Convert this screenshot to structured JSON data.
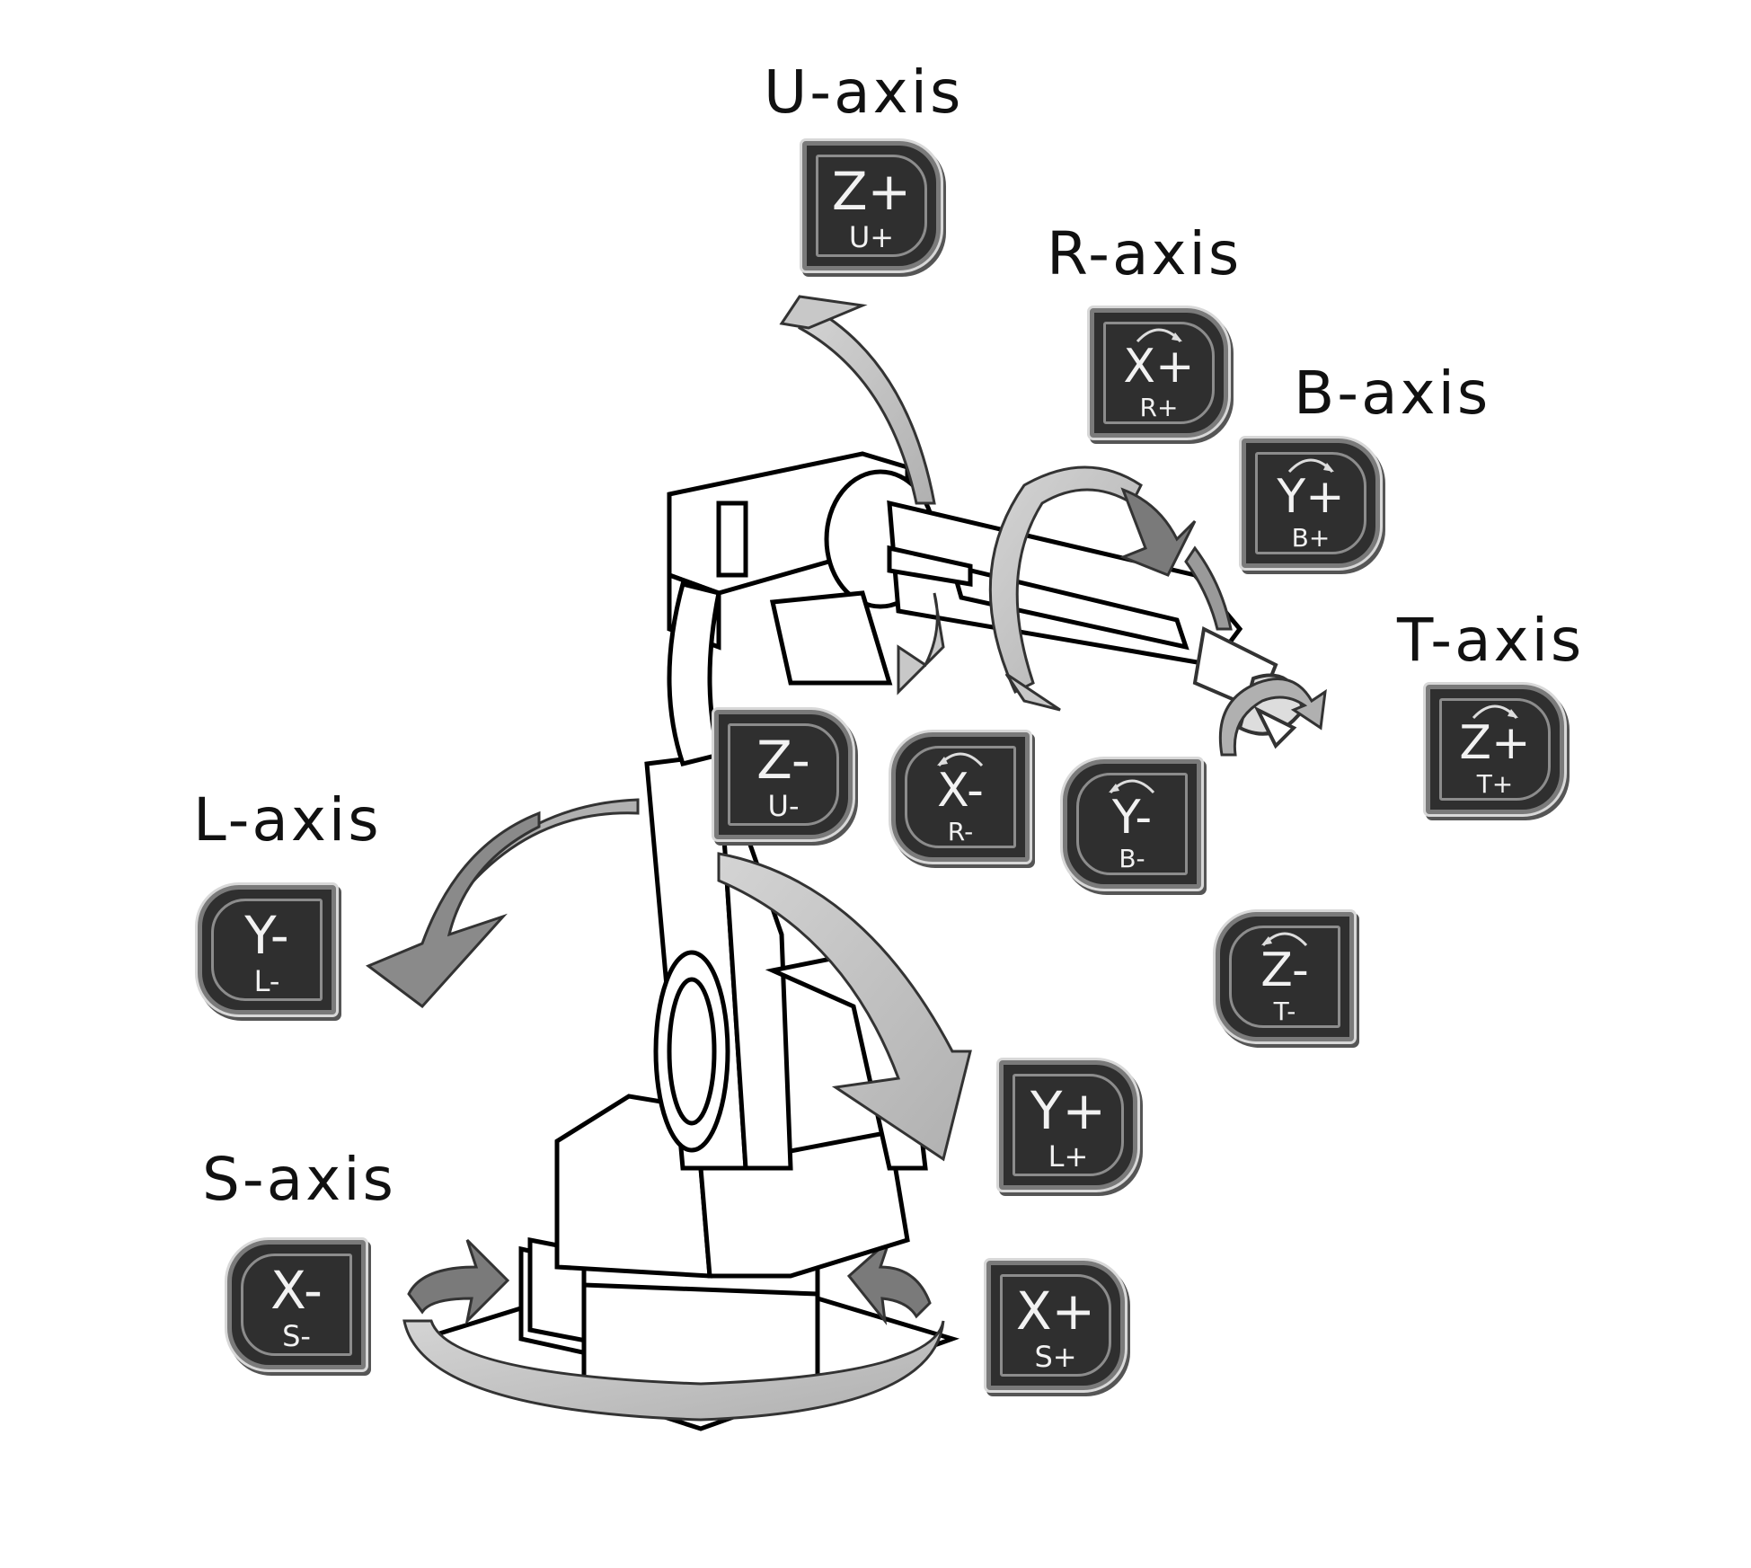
{
  "axes": {
    "u": {
      "label": "U-axis",
      "plus": {
        "main": "Z+",
        "sub": "U+"
      },
      "minus": {
        "main": "Z-",
        "sub": "U-"
      }
    },
    "r": {
      "label": "R-axis",
      "plus": {
        "main": "X+",
        "sub": "R+"
      },
      "minus": {
        "main": "X-",
        "sub": "R-"
      }
    },
    "b": {
      "label": "B-axis",
      "plus": {
        "main": "Y+",
        "sub": "B+"
      },
      "minus": {
        "main": "Y-",
        "sub": "B-"
      }
    },
    "t": {
      "label": "T-axis",
      "plus": {
        "main": "Z+",
        "sub": "T+"
      },
      "minus": {
        "main": "Z-",
        "sub": "T-"
      }
    },
    "l": {
      "label": "L-axis",
      "plus": {
        "main": "Y+",
        "sub": "L+"
      },
      "minus": {
        "main": "Y-",
        "sub": "L-"
      }
    },
    "s": {
      "label": "S-axis",
      "plus": {
        "main": "X+",
        "sub": "S+"
      },
      "minus": {
        "main": "X-",
        "sub": "S-"
      }
    }
  },
  "colors": {
    "key_face": "#2f2f2f",
    "key_text": "#f2f2f2",
    "arrow_light": "#c8c8c8",
    "arrow_dark": "#808080",
    "robot_line": "#000000"
  }
}
